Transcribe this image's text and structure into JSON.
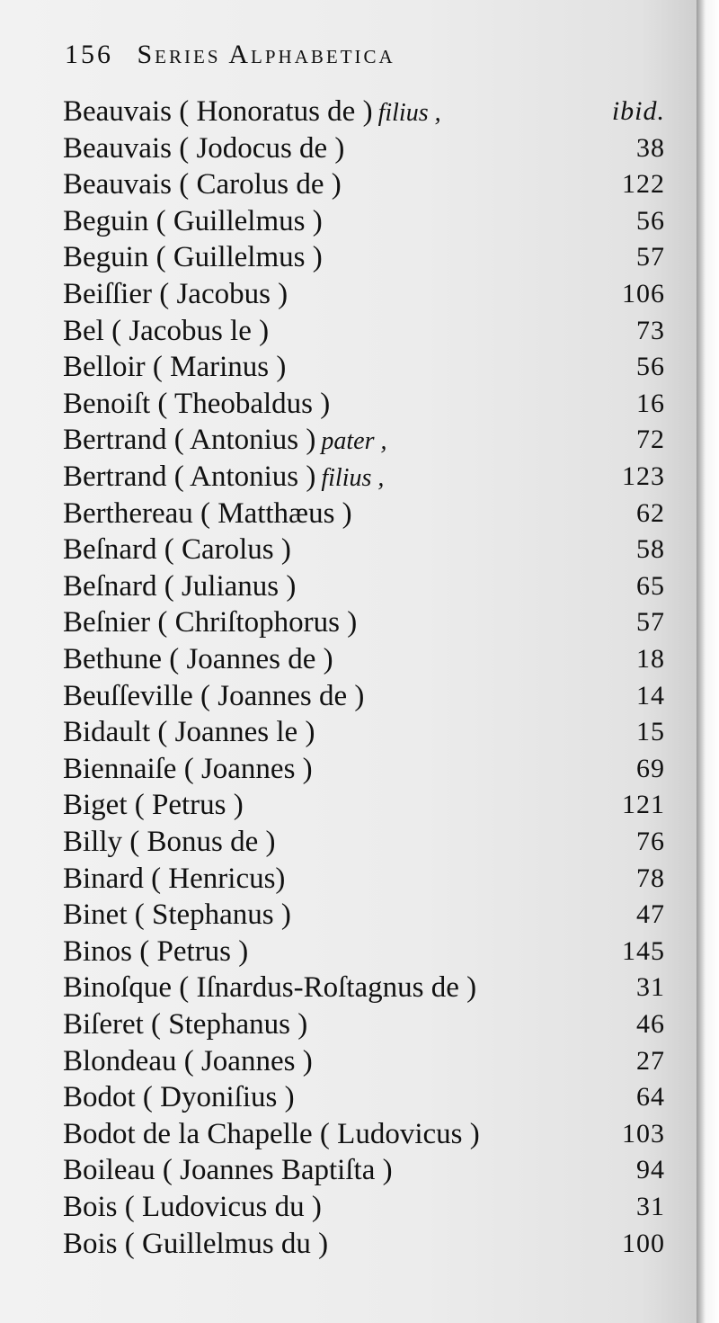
{
  "header": {
    "page_number": "156",
    "title": "Series Alphabetica"
  },
  "entries": [
    {
      "name": "Beauvais ( Honoratus de )",
      "note": "filius ,",
      "page": "ibid."
    },
    {
      "name": "Beauvais ( Jodocus de )",
      "note": "",
      "page": "38"
    },
    {
      "name": "Beauvais ( Carolus de )",
      "note": "",
      "page": "122"
    },
    {
      "name": "Beguin ( Guillelmus )",
      "note": "",
      "page": "56"
    },
    {
      "name": "Beguin ( Guillelmus )",
      "note": "",
      "page": "57"
    },
    {
      "name": "Beiſſier ( Jacobus )",
      "note": "",
      "page": "106"
    },
    {
      "name": "Bel ( Jacobus le )",
      "note": "",
      "page": "73"
    },
    {
      "name": "Belloir ( Marinus )",
      "note": "",
      "page": "56"
    },
    {
      "name": "Benoiſt ( Theobaldus )",
      "note": "",
      "page": "16"
    },
    {
      "name": "Bertrand ( Antonius )",
      "note": "pater ,",
      "page": "72"
    },
    {
      "name": "Bertrand ( Antonius )",
      "note": "filius ,",
      "page": "123"
    },
    {
      "name": "Berthereau ( Matthæus )",
      "note": "",
      "page": "62"
    },
    {
      "name": "Beſnard ( Carolus )",
      "note": "",
      "page": "58"
    },
    {
      "name": "Beſnard ( Julianus )",
      "note": "",
      "page": "65"
    },
    {
      "name": "Beſnier ( Chriſtophorus )",
      "note": "",
      "page": "57"
    },
    {
      "name": "Bethune ( Joannes de )",
      "note": "",
      "page": "18"
    },
    {
      "name": "Beuſſeville ( Joannes de )",
      "note": "",
      "page": "14"
    },
    {
      "name": "Bidault ( Joannes le )",
      "note": "",
      "page": "15"
    },
    {
      "name": "Biennaiſe ( Joannes )",
      "note": "",
      "page": "69"
    },
    {
      "name": "Biget ( Petrus )",
      "note": "",
      "page": "121"
    },
    {
      "name": "Billy ( Bonus de )",
      "note": "",
      "page": "76"
    },
    {
      "name": "Binard ( Henricus)",
      "note": "",
      "page": "78"
    },
    {
      "name": "Binet ( Stephanus )",
      "note": "",
      "page": "47"
    },
    {
      "name": "Binos ( Petrus )",
      "note": "",
      "page": "145"
    },
    {
      "name": "Binoſque ( Iſnardus-Roſtagnus de )",
      "note": "",
      "page": "31"
    },
    {
      "name": "Biſeret ( Stephanus )",
      "note": "",
      "page": "46"
    },
    {
      "name": "Blondeau ( Joannes )",
      "note": "",
      "page": "27"
    },
    {
      "name": "Bodot ( Dyoniſius )",
      "note": "",
      "page": "64"
    },
    {
      "name": "Bodot de la Chapelle ( Ludovicus )",
      "note": "",
      "page": "103"
    },
    {
      "name": "Boileau ( Joannes Baptiſta )",
      "note": "",
      "page": "94"
    },
    {
      "name": "Bois ( Ludovicus du )",
      "note": "",
      "page": "31"
    },
    {
      "name": "Bois ( Guillelmus du )",
      "note": "",
      "page": "100"
    }
  ]
}
